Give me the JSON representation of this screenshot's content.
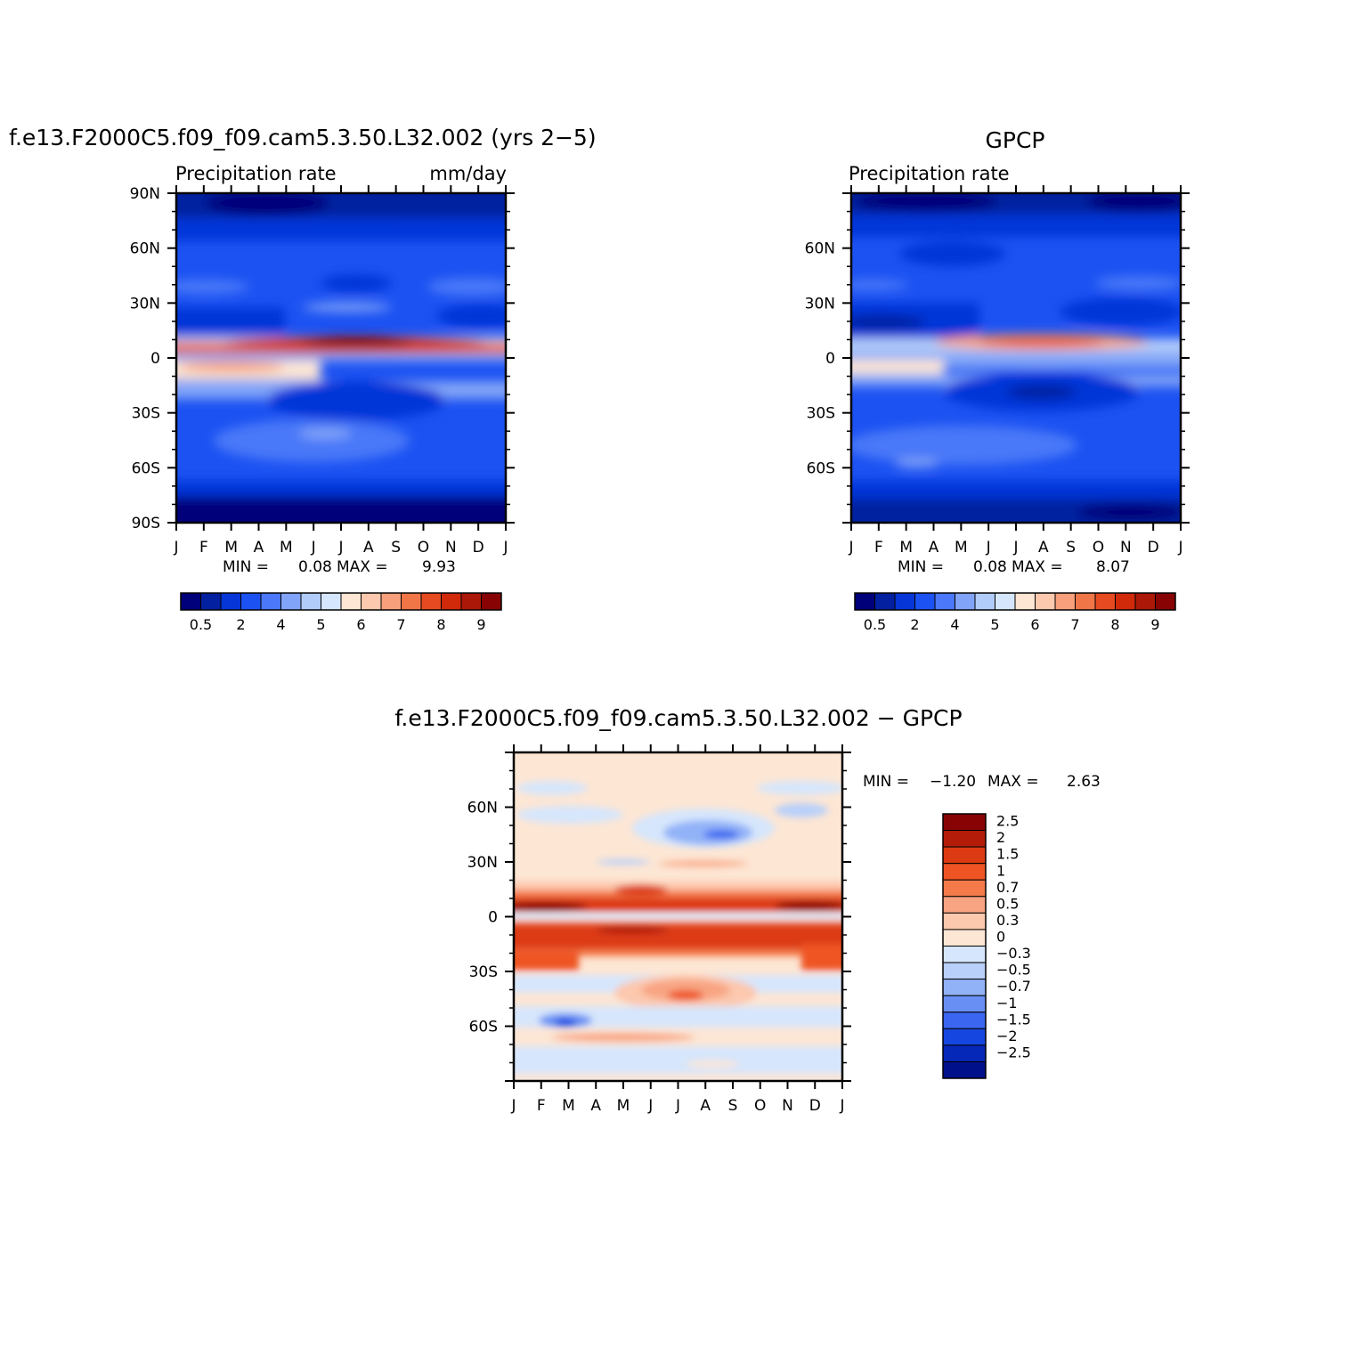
{
  "figure": {
    "months": [
      "J",
      "F",
      "M",
      "A",
      "M",
      "J",
      "J",
      "A",
      "S",
      "O",
      "N",
      "D",
      "J"
    ],
    "lat_ticks_full": [
      "90N",
      "60N",
      "30N",
      "0",
      "30S",
      "60S",
      "90S"
    ],
    "lat_ticks_inner": [
      "60N",
      "30N",
      "0",
      "30S",
      "60S"
    ]
  },
  "chart_data": [
    {
      "type": "heatmap",
      "id": "model",
      "title": "f.e13.F2000C5.f09_f09.cam5.3.50.L32.002 (yrs 2−5)",
      "left_label": "Precipitation rate",
      "right_label": "mm/day",
      "min_label": "MIN =",
      "min_value": "0.08",
      "max_label": "MAX =",
      "max_value": "9.93",
      "x": [
        "J",
        "F",
        "M",
        "A",
        "M",
        "J",
        "J",
        "A",
        "S",
        "O",
        "N",
        "D"
      ],
      "y": [
        "90N",
        "60N",
        "30N",
        "0",
        "30S",
        "60S",
        "90S"
      ],
      "colorbar_labels": [
        "0.5",
        "2",
        "4",
        "5",
        "6",
        "7",
        "8",
        "9"
      ],
      "colorbar_colors": [
        "#00007a",
        "#0220a0",
        "#0636d8",
        "#1c52f2",
        "#4a78f8",
        "#82a4f8",
        "#b2ccfa",
        "#d6e6fc",
        "#fde6d4",
        "#fcc8ae",
        "#f8a07c",
        "#f07648",
        "#e64a20",
        "#d02a0a",
        "#ac1808",
        "#880404"
      ]
    },
    {
      "type": "heatmap",
      "id": "obs",
      "title": "GPCP",
      "left_label": "Precipitation rate",
      "min_label": "MIN =",
      "min_value": "0.08",
      "max_label": "MAX =",
      "max_value": "8.07",
      "x": [
        "J",
        "F",
        "M",
        "A",
        "M",
        "J",
        "J",
        "A",
        "S",
        "O",
        "N",
        "D"
      ],
      "y": [
        "60N",
        "30N",
        "0",
        "30S",
        "60S"
      ],
      "colorbar_labels": [
        "0.5",
        "2",
        "4",
        "5",
        "6",
        "7",
        "8",
        "9"
      ]
    },
    {
      "type": "heatmap",
      "id": "diff",
      "title": "f.e13.F2000C5.f09_f09.cam5.3.50.L32.002 − GPCP",
      "min_label": "MIN =",
      "min_value": "−1.20",
      "max_label": "MAX =",
      "max_value": "2.63",
      "x": [
        "J",
        "F",
        "M",
        "A",
        "M",
        "J",
        "J",
        "A",
        "S",
        "O",
        "N",
        "D"
      ],
      "y": [
        "60N",
        "30N",
        "0",
        "30S",
        "60S"
      ],
      "colorbar_labels": [
        "2.5",
        "2",
        "1.5",
        "1",
        "0.7",
        "0.5",
        "0.3",
        "0",
        "−0.3",
        "−0.5",
        "−0.7",
        "−1",
        "−1.5",
        "−2",
        "−2.5"
      ],
      "colorbar_colors": [
        "#880404",
        "#b41c0a",
        "#dc3a12",
        "#ee5424",
        "#f47a4a",
        "#f8a482",
        "#fcc8ae",
        "#fde6d4",
        "#d6e6fc",
        "#b8d0fa",
        "#92b2f8",
        "#6890f4",
        "#3a66f0",
        "#1646e0",
        "#0628b8",
        "#00108a"
      ]
    }
  ]
}
